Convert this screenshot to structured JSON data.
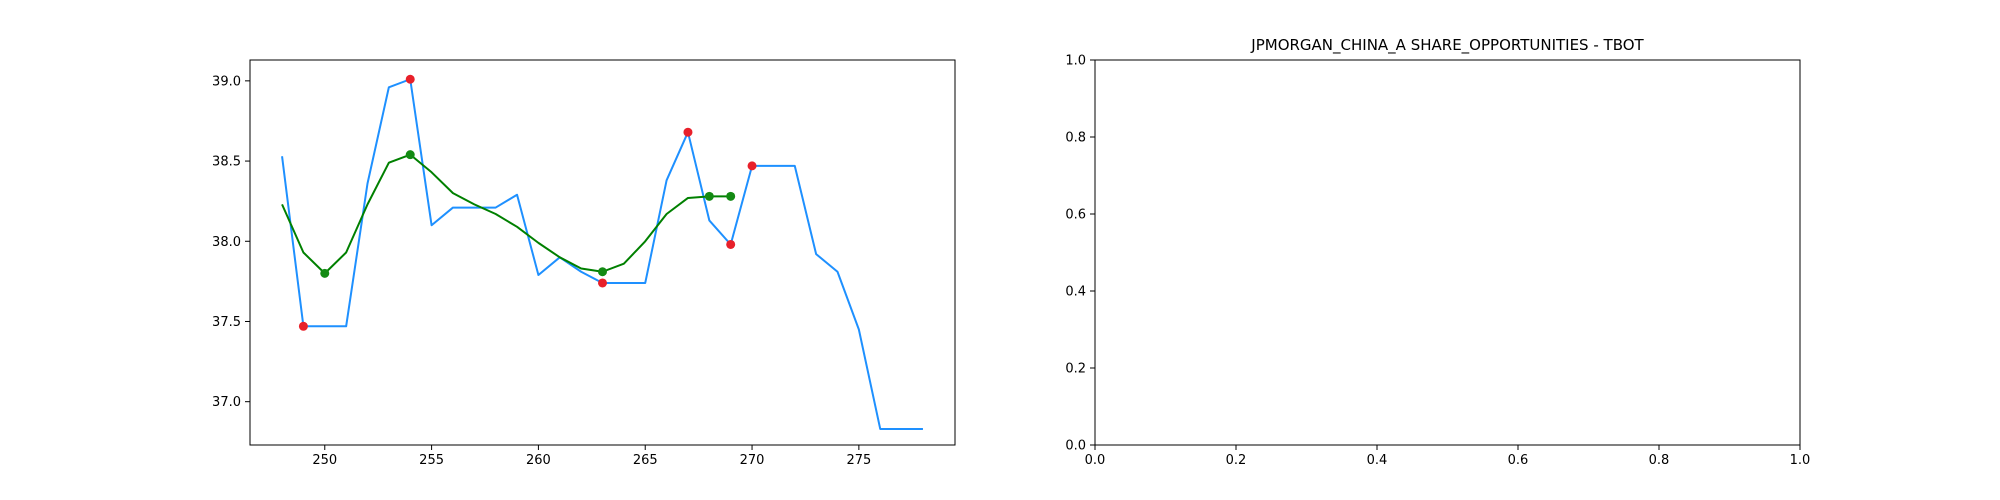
{
  "chart_data": [
    {
      "type": "line",
      "title": "",
      "xlabel": "",
      "ylabel": "",
      "xlim": [
        246.5,
        279.5
      ],
      "ylim": [
        36.73,
        39.13
      ],
      "xticks": [
        "250",
        "255",
        "260",
        "265",
        "270",
        "275"
      ],
      "yticks": [
        "37.0",
        "37.5",
        "38.0",
        "38.5",
        "39.0"
      ],
      "grid": false,
      "series": [
        {
          "style": "line",
          "color": "#1e90ff",
          "x": [
            248,
            249,
            250,
            251,
            252,
            253,
            254,
            255,
            256,
            257,
            258,
            259,
            260,
            261,
            262,
            263,
            264,
            265,
            266,
            267,
            268,
            269,
            270,
            271,
            272,
            273,
            274,
            275,
            276,
            277,
            278
          ],
          "y": [
            38.53,
            37.47,
            37.47,
            37.47,
            38.36,
            38.96,
            39.01,
            38.1,
            38.21,
            38.21,
            38.21,
            38.29,
            37.79,
            37.9,
            37.81,
            37.74,
            37.74,
            37.74,
            38.38,
            38.68,
            38.13,
            37.98,
            38.47,
            38.47,
            38.47,
            37.92,
            37.81,
            37.45,
            36.83,
            36.83,
            36.83
          ]
        },
        {
          "style": "line",
          "color": "#008000",
          "x": [
            248,
            249,
            250,
            251,
            252,
            253,
            254,
            255,
            256,
            257,
            258,
            259,
            260,
            261,
            262,
            263,
            264,
            265,
            266,
            267,
            268,
            269
          ],
          "y": [
            38.23,
            37.93,
            37.8,
            37.93,
            38.23,
            38.49,
            38.54,
            38.43,
            38.3,
            38.23,
            38.17,
            38.09,
            37.99,
            37.9,
            37.83,
            37.81,
            37.86,
            38.0,
            38.17,
            38.27,
            38.28,
            38.28
          ]
        },
        {
          "style": "scatter",
          "color": "#e8202a",
          "x": [
            249,
            254,
            263,
            267,
            269,
            270
          ],
          "y": [
            37.47,
            39.01,
            37.74,
            38.68,
            37.98,
            38.47
          ]
        },
        {
          "style": "scatter",
          "color": "#138a13",
          "x": [
            250,
            254,
            263,
            268,
            269
          ],
          "y": [
            37.8,
            38.54,
            37.81,
            38.28,
            38.28
          ]
        }
      ]
    },
    {
      "type": "line",
      "title": "JPMORGAN_CHINA_A SHARE_OPPORTUNITIES - TBOT",
      "xlabel": "",
      "ylabel": "",
      "xlim": [
        0.0,
        1.0
      ],
      "ylim": [
        0.0,
        1.0
      ],
      "xticks": [
        "0.0",
        "0.2",
        "0.4",
        "0.6",
        "0.8",
        "1.0"
      ],
      "yticks": [
        "0.0",
        "0.2",
        "0.4",
        "0.6",
        "0.8",
        "1.0"
      ],
      "grid": false,
      "series": []
    }
  ]
}
